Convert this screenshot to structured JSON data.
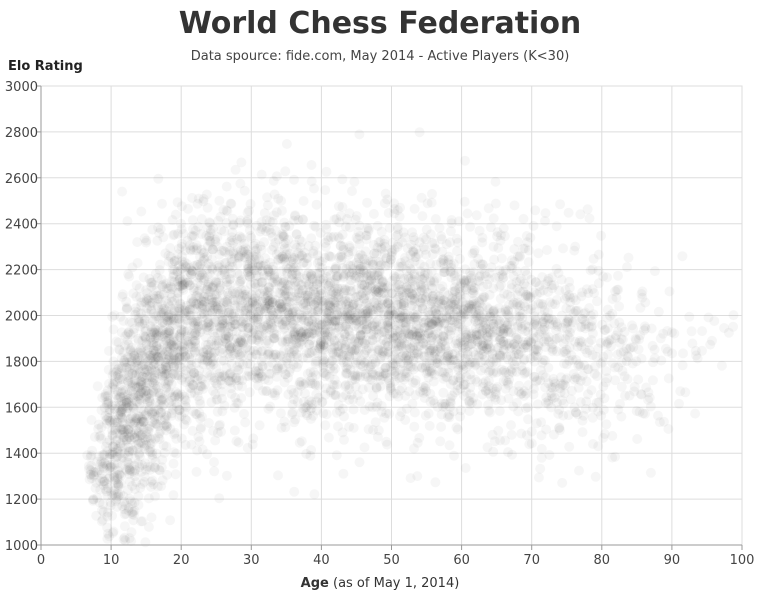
{
  "title": "World Chess Federation",
  "subtitle": "Data spource: fide.com, May 2014 - Active Players (K<30)",
  "y_axis_label": "Elo Rating",
  "x_axis_label_bold": "Age",
  "x_axis_label_rest": " (as of May 1, 2014)",
  "colors": {
    "points": "#000000",
    "grid": "#dddddd",
    "axis": "#999999",
    "background": "#ffffff"
  },
  "chart_data": {
    "type": "scatter",
    "title": "World Chess Federation",
    "subtitle": "Data spource: fide.com, May 2014 - Active Players (K<30)",
    "xlabel": "Age (as of May 1, 2014)",
    "ylabel": "Elo Rating",
    "xlim": [
      0,
      100
    ],
    "ylim": [
      1000,
      3000
    ],
    "x_ticks": [
      0,
      10,
      20,
      30,
      40,
      50,
      60,
      70,
      80,
      90,
      100
    ],
    "y_ticks": [
      1000,
      1200,
      1400,
      1600,
      1800,
      2000,
      2200,
      2400,
      2600,
      2800,
      3000
    ],
    "grid": true,
    "legend": "none",
    "point_style": "semi-transparent black circles",
    "density_profile": [
      {
        "age": 8,
        "center": 1350,
        "spread": 140,
        "density": 0.2
      },
      {
        "age": 10,
        "center": 1420,
        "spread": 220,
        "density": 0.7
      },
      {
        "age": 12,
        "center": 1550,
        "spread": 260,
        "density": 1.0
      },
      {
        "age": 14,
        "center": 1650,
        "spread": 260,
        "density": 1.0
      },
      {
        "age": 16,
        "center": 1750,
        "spread": 260,
        "density": 1.0
      },
      {
        "age": 18,
        "center": 1850,
        "spread": 260,
        "density": 0.9
      },
      {
        "age": 20,
        "center": 1920,
        "spread": 250,
        "density": 0.8
      },
      {
        "age": 25,
        "center": 2000,
        "spread": 240,
        "density": 0.7
      },
      {
        "age": 30,
        "center": 2020,
        "spread": 240,
        "density": 0.65
      },
      {
        "age": 40,
        "center": 2000,
        "spread": 230,
        "density": 0.7
      },
      {
        "age": 50,
        "center": 1980,
        "spread": 220,
        "density": 0.7
      },
      {
        "age": 60,
        "center": 1950,
        "spread": 220,
        "density": 0.6
      },
      {
        "age": 70,
        "center": 1900,
        "spread": 220,
        "density": 0.4
      },
      {
        "age": 80,
        "center": 1850,
        "spread": 220,
        "density": 0.2
      },
      {
        "age": 90,
        "center": 1800,
        "spread": 200,
        "density": 0.05
      },
      {
        "age": 98,
        "center": 1980,
        "spread": 50,
        "density": 0.01
      }
    ]
  }
}
